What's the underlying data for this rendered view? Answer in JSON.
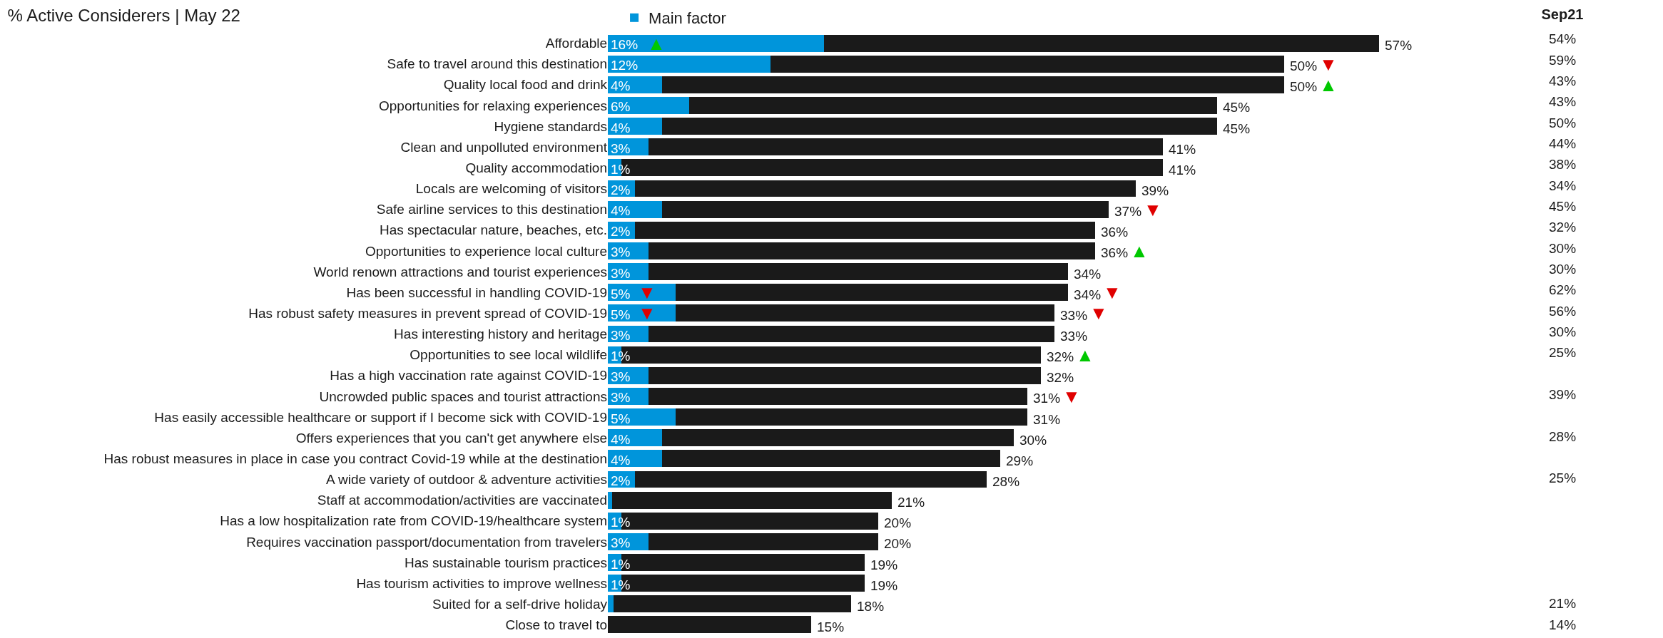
{
  "chart_data": [
    {
      "type": "bar",
      "orientation": "horizontal",
      "stacked": true,
      "title": "% Active Considerers | May 22",
      "categories": [
        "Affordable",
        "Safe to travel around this destination",
        "Quality local food and drink",
        "Opportunities for relaxing experiences",
        "Hygiene standards",
        "Clean and unpolluted environment",
        "Quality accommodation",
        "Locals are welcoming of visitors",
        "Safe airline services to this destination",
        "Has spectacular nature, beaches, etc.",
        "Opportunities to experience local culture",
        "World renown attractions and tourist experiences",
        "Has been successful in handling COVID-19",
        "Has robust safety measures in prevent spread of COVID-19",
        "Has interesting history and heritage",
        "Opportunities to see local wildlife",
        "Has a high vaccination rate against COVID-19",
        "Uncrowded public spaces and tourist attractions",
        "Has easily accessible healthcare or support if I become sick with COVID-19",
        "Offers experiences that you can't get anywhere else",
        "Has robust measures in place in case you contract Covid-19 while at the destination",
        "A wide variety of outdoor & adventure activities",
        "Staff at accommodation/activities are vaccinated",
        "Has a low hospitalization rate from COVID-19/healthcare system",
        "Requires vaccination passport/documentation from travelers",
        "Has sustainable tourism practices",
        "Has tourism activities to improve wellness",
        "Suited for a self-drive holiday",
        "Close to travel to"
      ],
      "series": [
        {
          "name": "Main factor",
          "color": "#0095db",
          "values": [
            16,
            12,
            4,
            6,
            4,
            3,
            1,
            2,
            4,
            2,
            3,
            3,
            5,
            5,
            3,
            1,
            3,
            3,
            5,
            4,
            4,
            2,
            0.3,
            1,
            3,
            1,
            1,
            0.4,
            null
          ],
          "value_labels": [
            "16%",
            "12%",
            "4%",
            "6%",
            "4%",
            "3%",
            "1%",
            "2%",
            "4%",
            "2%",
            "3%",
            "3%",
            "5%",
            "5%",
            "3%",
            "1%",
            "3%",
            "3%",
            "5%",
            "4%",
            "4%",
            "2%",
            null,
            "1%",
            "3%",
            "1%",
            "1%",
            null,
            null
          ]
        },
        {
          "color": "#1a1a1a",
          "values": [
            41,
            38,
            46,
            39,
            41,
            38,
            40,
            37,
            33,
            34,
            33,
            31,
            29,
            28,
            30,
            31,
            29,
            28,
            26,
            26,
            25,
            26,
            20.7,
            19,
            17,
            18,
            18,
            17.6,
            15
          ]
        }
      ],
      "totals": [
        "57%",
        "50%",
        "50%",
        "45%",
        "45%",
        "41%",
        "41%",
        "39%",
        "37%",
        "36%",
        "36%",
        "34%",
        "34%",
        "33%",
        "33%",
        "32%",
        "32%",
        "31%",
        "31%",
        "30%",
        "29%",
        "28%",
        "21%",
        "20%",
        "20%",
        "19%",
        "19%",
        "18%",
        "15%"
      ],
      "tick_labels": "y",
      "legend": "top",
      "annotations": [
        {
          "text": "▲",
          "x": 3.6,
          "y": "Affordable"
        },
        {
          "text": "▼",
          "x": 50,
          "y": "Safe to travel around this destination"
        },
        {
          "text": "▲",
          "x": 50,
          "y": "Quality local food and drink"
        },
        {
          "text": "▼",
          "x": 37,
          "y": "Safe airline services to this destination"
        },
        {
          "text": "▲",
          "x": 36,
          "y": "Opportunities to experience local culture"
        },
        {
          "text": "▼",
          "x": 2.9,
          "y": "Has been successful in handling COVID-19"
        },
        {
          "text": "▼",
          "x": 34,
          "y": "Has been successful in handling COVID-19"
        },
        {
          "text": "▼",
          "x": 2.9,
          "y": "Has robust safety measures in prevent spread of COVID-19"
        },
        {
          "text": "▼",
          "x": 33,
          "y": "Has robust safety measures in prevent spread of COVID-19"
        },
        {
          "text": "▲",
          "x": 32,
          "y": "Opportunities to see local wildlife"
        },
        {
          "text": "▼",
          "x": 31,
          "y": "Uncrowded public spaces and tourist attractions"
        }
      ]
    },
    {
      "type": "other",
      "title": "Sep21",
      "categories": [
        null,
        null,
        null,
        null,
        null,
        null,
        null,
        null,
        null,
        null,
        null,
        null,
        null,
        null,
        null,
        null,
        null,
        null,
        null,
        null,
        null,
        null,
        null,
        null,
        null,
        null,
        null,
        null,
        null
      ],
      "value_labels": [
        "54%",
        "59%",
        "43%",
        "43%",
        "50%",
        "44%",
        "38%",
        "34%",
        "45%",
        "32%",
        "30%",
        "30%",
        "62%",
        "56%",
        "30%",
        "25%",
        null,
        "39%",
        null,
        "28%",
        null,
        "25%",
        null,
        null,
        null,
        null,
        null,
        "21%",
        "14%"
      ]
    }
  ]
}
